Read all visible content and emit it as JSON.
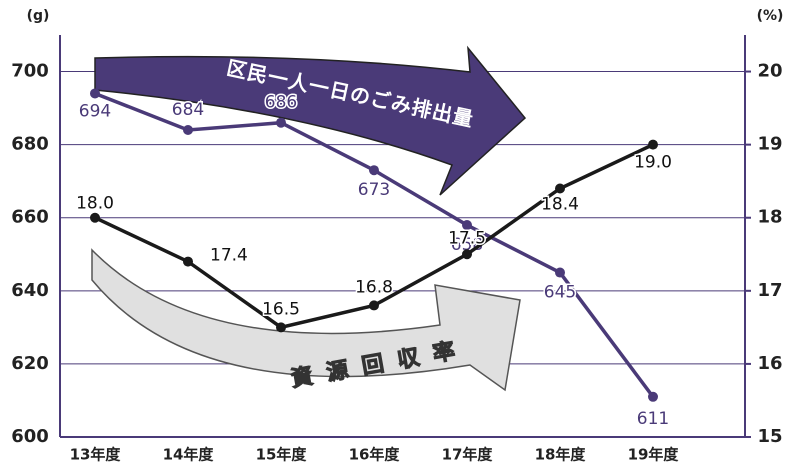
{
  "chart_data": {
    "type": "line",
    "y_unit": "(g)",
    "y2_unit": "(%)",
    "categories": [
      "13年度",
      "14年度",
      "15年度",
      "16年度",
      "17年度",
      "18年度",
      "19年度"
    ],
    "series": [
      {
        "name": "区民一人一日のごみ排出量",
        "color": "#4a3a78",
        "values": [
          694,
          684,
          686,
          673,
          658,
          645,
          611
        ]
      },
      {
        "name": "資源回収率",
        "color": "#1a1a1a",
        "axis": "y2",
        "values": [
          18.0,
          17.4,
          16.5,
          16.8,
          17.5,
          18.4,
          19.0
        ],
        "value_labels": [
          "18.0",
          "17.4",
          "16.5",
          "16.8",
          "17.5",
          "18.4",
          "19.0"
        ]
      }
    ],
    "ylim": [
      600,
      710
    ],
    "yticks": [
      600,
      620,
      640,
      660,
      680,
      700
    ],
    "y2lim": [
      15,
      20.5
    ],
    "y2ticks": [
      15,
      16,
      17,
      18,
      19,
      20
    ],
    "grid": true
  }
}
